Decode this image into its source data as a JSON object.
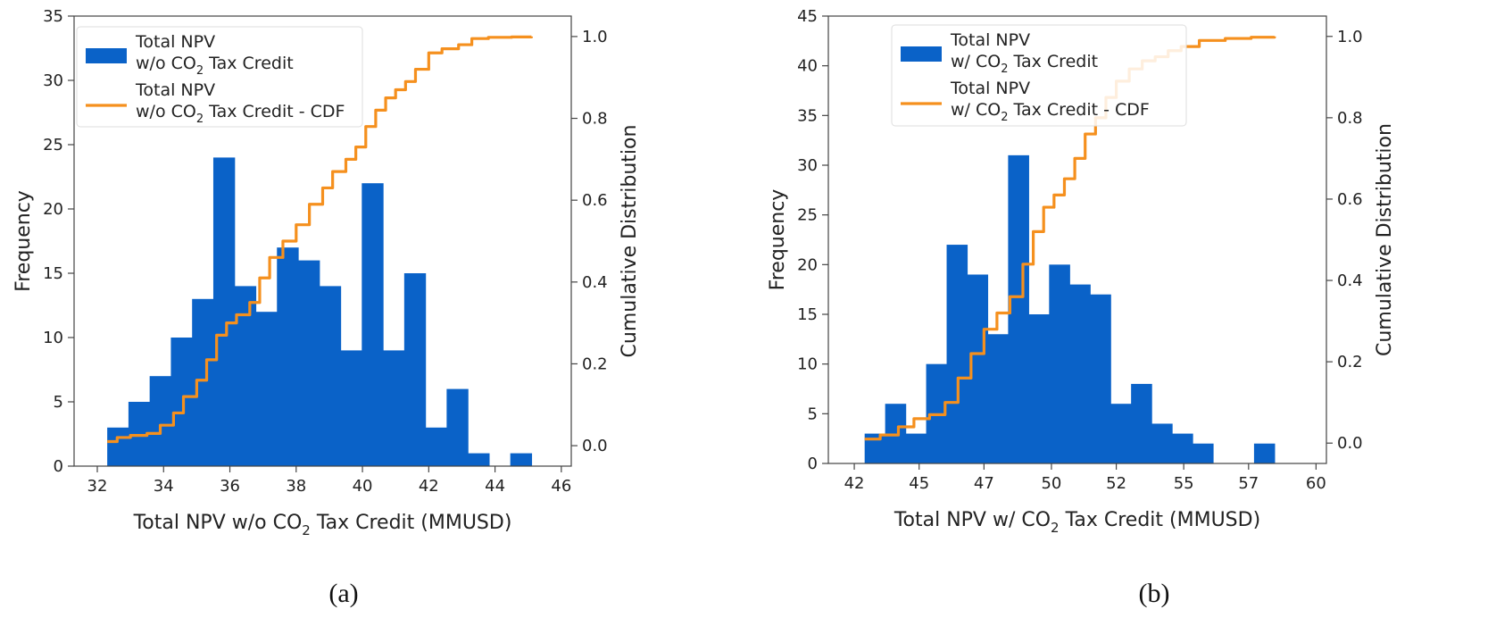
{
  "figure": {
    "captions": [
      "(a)",
      "(b)"
    ]
  },
  "colors": {
    "bar": "#0a62c8",
    "cdf": "#f5901e",
    "axis": "#444444",
    "text": "#222222"
  },
  "chart_data": [
    {
      "type": "bar",
      "panel": "(a)",
      "title": "",
      "xlabel": {
        "pre": "Total NPV w/o CO",
        "sub": "2",
        "post": " Tax Credit (MMUSD)"
      },
      "ylabel": "Frequency",
      "y2label": "Cumulative Distribution",
      "xlim": [
        31.3,
        46.3
      ],
      "ylim": [
        0,
        35
      ],
      "y2lim": [
        -0.05,
        1.05
      ],
      "xticks": [
        32,
        34,
        36,
        38,
        40,
        42,
        44,
        46
      ],
      "yticks": [
        0,
        5,
        10,
        15,
        20,
        25,
        30,
        35
      ],
      "y2ticks": [
        0.0,
        0.2,
        0.4,
        0.6,
        0.8,
        1.0
      ],
      "legend_position": "upper-left",
      "legend": [
        {
          "kind": "bar",
          "line1": "Total NPV",
          "line2_pre": "w/o CO",
          "line2_sub": "2",
          "line2_post": " Tax Credit"
        },
        {
          "kind": "line",
          "line1": "Total NPV",
          "line2_pre": "w/o CO",
          "line2_sub": "2",
          "line2_post": " Tax Credit - CDF"
        }
      ],
      "bins": {
        "start": 32.3,
        "width": 0.64,
        "counts": [
          3,
          5,
          7,
          10,
          13,
          24,
          14,
          12,
          17,
          16,
          14,
          9,
          22,
          9,
          15,
          3,
          6,
          1,
          0,
          1
        ]
      },
      "cdf": {
        "x": [
          32.3,
          32.6,
          33.0,
          33.5,
          33.9,
          34.3,
          34.6,
          35.0,
          35.3,
          35.6,
          35.9,
          36.2,
          36.6,
          36.9,
          37.2,
          37.6,
          38.0,
          38.4,
          38.8,
          39.1,
          39.5,
          39.8,
          40.1,
          40.4,
          40.7,
          41.0,
          41.3,
          41.6,
          42.0,
          42.4,
          42.9,
          43.3,
          43.8,
          44.5,
          45.1
        ],
        "y": [
          0.01,
          0.02,
          0.025,
          0.03,
          0.05,
          0.08,
          0.12,
          0.16,
          0.21,
          0.27,
          0.3,
          0.32,
          0.35,
          0.41,
          0.46,
          0.5,
          0.54,
          0.59,
          0.63,
          0.67,
          0.7,
          0.73,
          0.78,
          0.82,
          0.85,
          0.87,
          0.89,
          0.92,
          0.96,
          0.97,
          0.98,
          0.995,
          0.998,
          0.999,
          1.0
        ]
      }
    },
    {
      "type": "bar",
      "panel": "(b)",
      "title": "",
      "xlabel": {
        "pre": "Total NPV w/ CO",
        "sub": "2",
        "post": " Tax Credit (MMUSD)"
      },
      "ylabel": "Frequency",
      "y2label": "Cumulative Distribution",
      "xlim": [
        41.2,
        60.4
      ],
      "ylim": [
        0,
        45
      ],
      "y2lim": [
        -0.05,
        1.05
      ],
      "xticks": [
        42,
        45,
        47,
        50,
        52,
        55,
        57,
        60
      ],
      "xtick_positions": [
        42.2,
        44.7,
        47.2,
        49.8,
        52.3,
        54.9,
        57.4,
        60.0
      ],
      "yticks": [
        0,
        5,
        10,
        15,
        20,
        25,
        30,
        35,
        40,
        45
      ],
      "y2ticks": [
        0.0,
        0.2,
        0.4,
        0.6,
        0.8,
        1.0
      ],
      "legend_position": "upper-left",
      "legend": [
        {
          "kind": "bar",
          "line1": "Total NPV",
          "line2_pre": "w/ CO",
          "line2_sub": "2",
          "line2_post": " Tax Credit"
        },
        {
          "kind": "line",
          "line1": "Total NPV",
          "line2_pre": "w/ CO",
          "line2_sub": "2",
          "line2_post": " Tax Credit - CDF"
        }
      ],
      "bins": {
        "start": 42.6,
        "width": 0.79,
        "counts": [
          3,
          6,
          3,
          10,
          22,
          19,
          13,
          31,
          15,
          20,
          18,
          17,
          6,
          8,
          4,
          3,
          2,
          0,
          0,
          2
        ]
      },
      "cdf": {
        "x": [
          42.6,
          43.2,
          43.9,
          44.5,
          45.1,
          45.7,
          46.2,
          46.7,
          47.2,
          47.7,
          48.2,
          48.7,
          49.1,
          49.5,
          49.9,
          50.3,
          50.7,
          51.1,
          51.5,
          51.9,
          52.3,
          52.8,
          53.3,
          53.8,
          54.3,
          54.8,
          55.5,
          56.5,
          57.5,
          58.4
        ],
        "y": [
          0.01,
          0.02,
          0.04,
          0.06,
          0.07,
          0.1,
          0.16,
          0.22,
          0.28,
          0.32,
          0.36,
          0.44,
          0.52,
          0.58,
          0.61,
          0.65,
          0.7,
          0.76,
          0.8,
          0.85,
          0.89,
          0.92,
          0.94,
          0.95,
          0.965,
          0.975,
          0.99,
          0.995,
          0.998,
          1.0
        ]
      }
    }
  ]
}
